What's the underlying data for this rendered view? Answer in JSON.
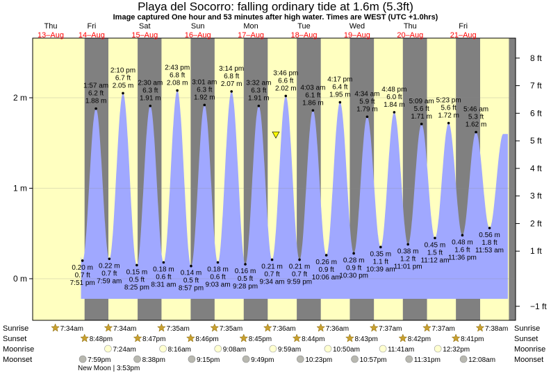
{
  "title": "Playa del Socorro: falling  ordinary tide at 1.6m (5.3ft)",
  "subtitle": "Image captured One hour and 53 minutes after high water. Times are WEST (UTC +1.0hrs)",
  "colors": {
    "day": "#ffffc0",
    "night": "#808080",
    "water": "#a0a8ff",
    "date": "#ff0000",
    "now_marker": "#ffff00"
  },
  "chart_data": {
    "type": "area",
    "y_left_label_unit": "m",
    "y_left_ticks": [
      "0 m",
      "1 m",
      "2 m"
    ],
    "y_right_ticks": [
      "−1 ft",
      "1 ft",
      "2 ft",
      "3 ft",
      "4 ft",
      "5 ft",
      "6 ft",
      "7 ft",
      "8 ft"
    ],
    "ylim_m": [
      -0.45,
      2.65
    ],
    "date_columns": [
      {
        "day": "Thu",
        "date": "13–Aug"
      },
      {
        "day": "Fri",
        "date": "14–Aug"
      },
      {
        "day": "Sat",
        "date": "15–Aug"
      },
      {
        "day": "Sun",
        "date": "16–Aug"
      },
      {
        "day": "Mon",
        "date": "17–Aug"
      },
      {
        "day": "Tue",
        "date": "18–Aug"
      },
      {
        "day": "Wed",
        "date": "19–Aug"
      },
      {
        "day": "Thu",
        "date": "20–Aug"
      },
      {
        "day": "Fri",
        "date": "21–Aug"
      }
    ],
    "extremes": [
      {
        "kind": "low",
        "time": "7:51 pm",
        "m": "0.20 m",
        "ft": "0.7 ft",
        "value": 0.2,
        "day": 0
      },
      {
        "kind": "high",
        "time": "1:57 am",
        "m": "1.88 m",
        "ft": "6.2 ft",
        "value": 1.88,
        "day": 1
      },
      {
        "kind": "low",
        "time": "7:59 am",
        "m": "0.22 m",
        "ft": "0.7 ft",
        "value": 0.22,
        "day": 1
      },
      {
        "kind": "high",
        "time": "2:10 pm",
        "m": "2.05 m",
        "ft": "6.7 ft",
        "value": 2.05,
        "day": 1
      },
      {
        "kind": "low",
        "time": "8:25 pm",
        "m": "0.15 m",
        "ft": "0.5 ft",
        "value": 0.15,
        "day": 1
      },
      {
        "kind": "high",
        "time": "2:30 am",
        "m": "1.91 m",
        "ft": "6.3 ft",
        "value": 1.91,
        "day": 2
      },
      {
        "kind": "low",
        "time": "8:31 am",
        "m": "0.18 m",
        "ft": "0.6 ft",
        "value": 0.18,
        "day": 2
      },
      {
        "kind": "high",
        "time": "2:43 pm",
        "m": "2.08 m",
        "ft": "6.8 ft",
        "value": 2.08,
        "day": 2
      },
      {
        "kind": "low",
        "time": "8:57 pm",
        "m": "0.14 m",
        "ft": "0.5 ft",
        "value": 0.14,
        "day": 2
      },
      {
        "kind": "high",
        "time": "3:01 am",
        "m": "1.92 m",
        "ft": "6.3 ft",
        "value": 1.92,
        "day": 3
      },
      {
        "kind": "low",
        "time": "9:03 am",
        "m": "0.18 m",
        "ft": "0.6 ft",
        "value": 0.18,
        "day": 3
      },
      {
        "kind": "high",
        "time": "3:14 pm",
        "m": "2.07 m",
        "ft": "6.8 ft",
        "value": 2.07,
        "day": 3
      },
      {
        "kind": "low",
        "time": "9:28 pm",
        "m": "0.16 m",
        "ft": "0.5 ft",
        "value": 0.16,
        "day": 3
      },
      {
        "kind": "high",
        "time": "3:32 am",
        "m": "1.91 m",
        "ft": "6.3 ft",
        "value": 1.91,
        "day": 4
      },
      {
        "kind": "low",
        "time": "9:34 am",
        "m": "0.21 m",
        "ft": "0.7 ft",
        "value": 0.21,
        "day": 4
      },
      {
        "kind": "high",
        "time": "3:46 pm",
        "m": "2.02 m",
        "ft": "6.6 ft",
        "value": 2.02,
        "day": 4
      },
      {
        "kind": "low",
        "time": "9:59 pm",
        "m": "0.21 m",
        "ft": "0.7 ft",
        "value": 0.21,
        "day": 4
      },
      {
        "kind": "high",
        "time": "4:03 am",
        "m": "1.86 m",
        "ft": "6.1 ft",
        "value": 1.86,
        "day": 5
      },
      {
        "kind": "low",
        "time": "10:06 am",
        "m": "0.26 m",
        "ft": "0.9 ft",
        "value": 0.26,
        "day": 5
      },
      {
        "kind": "high",
        "time": "4:17 pm",
        "m": "1.95 m",
        "ft": "6.4 ft",
        "value": 1.95,
        "day": 5
      },
      {
        "kind": "low",
        "time": "10:30 pm",
        "m": "0.28 m",
        "ft": "0.9 ft",
        "value": 0.28,
        "day": 5
      },
      {
        "kind": "high",
        "time": "4:34 am",
        "m": "1.79 m",
        "ft": "5.9 ft",
        "value": 1.79,
        "day": 6
      },
      {
        "kind": "low",
        "time": "10:39 am",
        "m": "0.35 m",
        "ft": "1.1 ft",
        "value": 0.35,
        "day": 6
      },
      {
        "kind": "high",
        "time": "4:48 pm",
        "m": "1.84 m",
        "ft": "6.0 ft",
        "value": 1.84,
        "day": 6
      },
      {
        "kind": "low",
        "time": "11:01 pm",
        "m": "0.38 m",
        "ft": "1.2 ft",
        "value": 0.38,
        "day": 6
      },
      {
        "kind": "high",
        "time": "5:09 am",
        "m": "1.71 m",
        "ft": "5.6 ft",
        "value": 1.71,
        "day": 7
      },
      {
        "kind": "low",
        "time": "11:12 am",
        "m": "0.45 m",
        "ft": "1.5 ft",
        "value": 0.45,
        "day": 7
      },
      {
        "kind": "high",
        "time": "5:23 pm",
        "m": "1.72 m",
        "ft": "5.6 ft",
        "value": 1.72,
        "day": 7
      },
      {
        "kind": "low",
        "time": "11:36 pm",
        "m": "0.48 m",
        "ft": "1.6 ft",
        "value": 0.48,
        "day": 7
      },
      {
        "kind": "high",
        "time": "5:46 am",
        "m": "1.62 m",
        "ft": "5.3 ft",
        "value": 1.62,
        "day": 8
      },
      {
        "kind": "low",
        "time": "11:53 am",
        "m": "0.56 m",
        "ft": "1.8 ft",
        "value": 0.56,
        "day": 8
      }
    ],
    "now_marker": {
      "value": 1.6,
      "label": "falling tide at 1.6m"
    }
  },
  "almanac": {
    "row_labels": [
      "Sunrise",
      "Sunset",
      "Moonrise",
      "Moonset"
    ],
    "sunrise": [
      "7:34am",
      "7:34am",
      "7:35am",
      "7:35am",
      "7:36am",
      "7:36am",
      "7:37am",
      "7:37am",
      "7:38am"
    ],
    "sunset": [
      "8:48pm",
      "8:47pm",
      "8:46pm",
      "8:45pm",
      "8:44pm",
      "8:43pm",
      "8:42pm",
      "8:41pm"
    ],
    "moonrise": [
      "7:24am",
      "8:16am",
      "9:08am",
      "9:59am",
      "10:50am",
      "11:41am",
      "12:32pm"
    ],
    "moonset": [
      "7:59pm",
      "8:38pm",
      "9:15pm",
      "9:49pm",
      "10:23pm",
      "10:57pm",
      "11:31pm",
      "12:08am"
    ],
    "moon_phase": "New Moon | 3:53pm"
  }
}
